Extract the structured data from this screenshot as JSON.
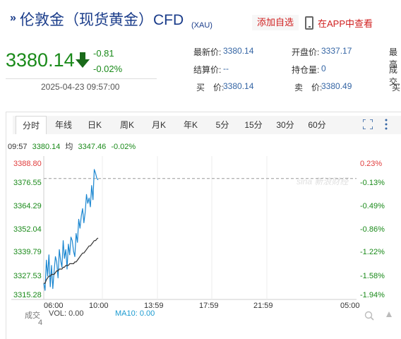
{
  "header": {
    "title_mark": "»",
    "title": "伦敦金（现货黄金）CFD",
    "code": "(XAU)",
    "add_favorite": "添加自选",
    "app_view": "在APP中查看"
  },
  "quote": {
    "price": "3380.14",
    "change": "-0.81",
    "change_pct": "-0.02%",
    "datetime": "2025-04-23 09:57:00",
    "direction": "down",
    "down_color": "#1a8a1a"
  },
  "fields": [
    {
      "label": "最新价:",
      "value": "3380.14"
    },
    {
      "label": "开盘价:",
      "value": "3337.17"
    },
    {
      "label": "最高",
      "value": ""
    },
    {
      "label": "结算价:",
      "value": "--"
    },
    {
      "label": "持仓量:",
      "value": "0"
    },
    {
      "label": "成交",
      "value": ""
    },
    {
      "label": "买　价:",
      "value": "3380.14"
    },
    {
      "label": "卖　价:",
      "value": "3380.49"
    },
    {
      "label": "买",
      "value": ""
    }
  ],
  "tabs": [
    "分时",
    "年线",
    "日K",
    "周K",
    "月K",
    "年K",
    "5分",
    "15分",
    "30分",
    "60分"
  ],
  "active_tab": "分时",
  "info": {
    "time": "09:57",
    "price": "3380.14",
    "avg_label": "均",
    "avg": "3347.46",
    "pct": "-0.02%"
  },
  "watermark": "sina 新浪财经",
  "chart_data": {
    "type": "line",
    "y_price_ticks": [
      "3388.80",
      "3376.55",
      "3364.29",
      "3352.04",
      "3339.79",
      "3327.53",
      "3315.28"
    ],
    "y_pct_ticks": [
      "0.23%",
      "-0.13%",
      "-0.49%",
      "-0.86%",
      "-1.22%",
      "-1.58%",
      "-1.94%"
    ],
    "x_ticks": [
      "06:00",
      "10:00",
      "13:59",
      "17:59",
      "21:59",
      "05:00"
    ],
    "ylim": [
      3315.28,
      3388.8
    ],
    "reference_price": 3380.95,
    "series": [
      {
        "values": [
          3322,
          3318,
          3335,
          3326,
          3338,
          3320,
          3332,
          3319,
          3329,
          3337,
          3334,
          3325,
          3341,
          3335,
          3331,
          3346,
          3336,
          3341,
          3330,
          3344,
          3338,
          3348,
          3346,
          3340,
          3337,
          3350,
          3345,
          3358,
          3353,
          3360,
          3364,
          3356,
          3362,
          3372,
          3367,
          3370,
          3365,
          3377,
          3369,
          3386,
          3384,
          3381,
          3380.14
        ]
      },
      {
        "values": [
          3322,
          3322,
          3324,
          3325,
          3326,
          3326,
          3327,
          3327,
          3327,
          3328,
          3329,
          3329,
          3330,
          3330,
          3330,
          3331,
          3331,
          3332,
          3332,
          3332,
          3333,
          3333,
          3333,
          3333,
          3334,
          3334,
          3335,
          3336,
          3337,
          3338,
          3339,
          3339,
          3340,
          3341,
          3342,
          3343,
          3343,
          3344,
          3345,
          3346,
          3346,
          3347,
          3347.46
        ]
      }
    ],
    "colors": {
      "price": "#1a86d0",
      "avg": "#333333",
      "up": "#e03c3c",
      "down": "#1a8a1a"
    }
  },
  "volume": {
    "label": "成交",
    "label2": "4",
    "vol": "VOL: 0.00",
    "ma10": "MA10: 0.00"
  }
}
